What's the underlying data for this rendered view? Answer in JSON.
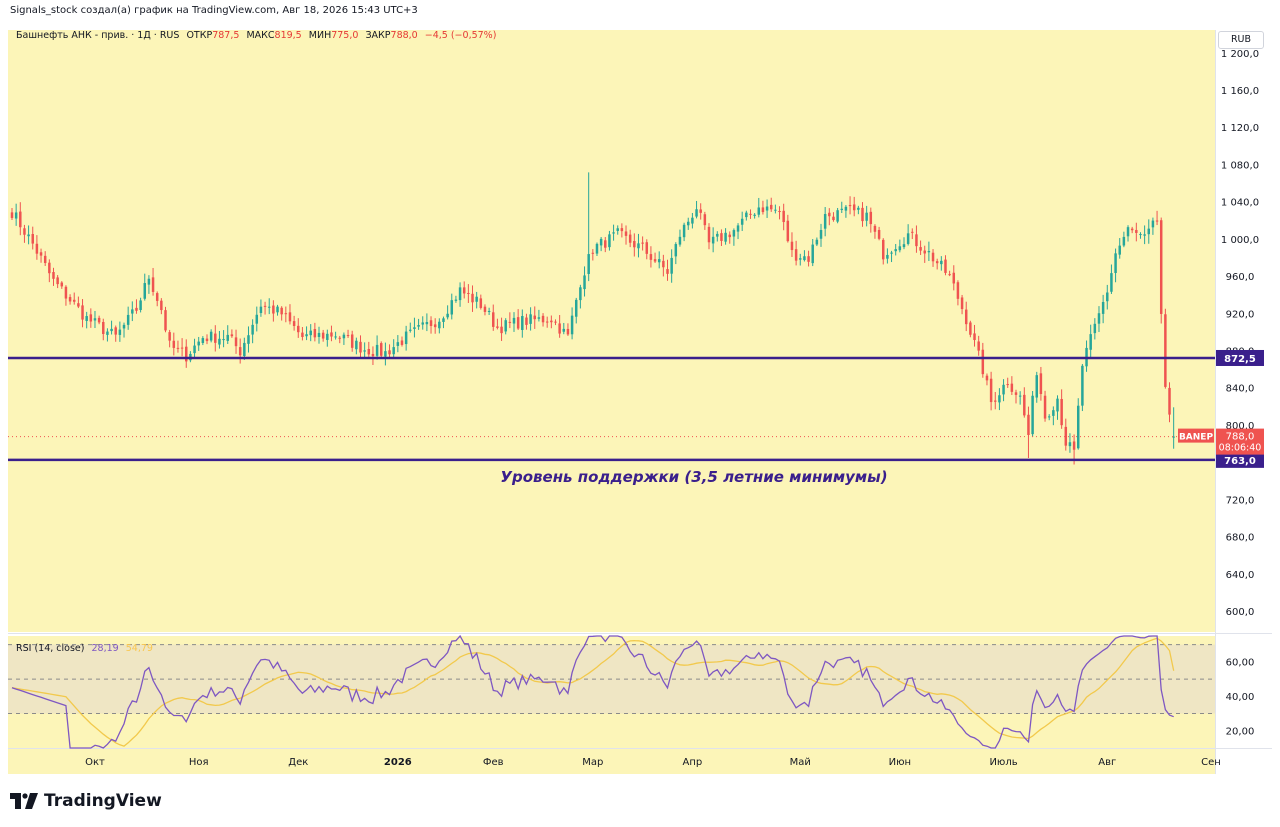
{
  "header": {
    "attribution": "Signals_stock создал(а) график на TradingView.com, Авг 18, 2026 15:43 UTC+3"
  },
  "legend": {
    "symbol_desc": "Башнефть АНК - прив. · 1Д · RUS",
    "open_label": "ОТКР",
    "open_value": "787,5",
    "high_label": "МАКС",
    "high_value": "819,5",
    "low_label": "МИН",
    "low_value": "775,0",
    "close_label": "ЗАКР",
    "close_value": "788,0",
    "change": "−4,5 (−0,57%)"
  },
  "currency": "RUB",
  "rsi_legend": {
    "label": "RSI (14, close)",
    "rsi_value": "28,19",
    "ma_value": "54,79"
  },
  "price_tag": {
    "ticker": "BANEP",
    "price": "788,0",
    "countdown": "08:06:40"
  },
  "annotation": "Уровень поддержки (3,5 летние минимумы)",
  "brand": "TradingView",
  "colors": {
    "plot_bg": "#fcf5b8",
    "up": "#26a69a",
    "down": "#ef5350",
    "level_line": "#3a1f8c",
    "rsi_line": "#7e57c2",
    "rsi_ma": "#f2c94c",
    "rsi_band": "#efe6c4",
    "annotation": "#3a1f8c"
  },
  "chart_data": [
    {
      "type": "candlestick",
      "title": "Башнефть АНК - прив. · 1Д · RUS",
      "ylabel": "RUB",
      "ylim": [
        578,
        1225
      ],
      "y_ticks": [
        "1 200,0",
        "1 160,0",
        "1 120,0",
        "1 080,0",
        "1 040,0",
        "1 000,0",
        "960,0",
        "920,0",
        "880,0",
        "840,0",
        "800,0",
        "760,0",
        "720,0",
        "680,0",
        "640,0",
        "600,0"
      ],
      "y_tick_values": [
        1200,
        1160,
        1120,
        1080,
        1040,
        1000,
        960,
        920,
        880,
        840,
        800,
        760,
        720,
        680,
        640,
        600
      ],
      "x_labels": [
        "Окт",
        "Ноя",
        "Дек",
        "2026",
        "Фев",
        "Мар",
        "Апр",
        "Май",
        "Июн",
        "Июль",
        "Авг",
        "Сен"
      ],
      "x_label_days": [
        20,
        45,
        69,
        93,
        116,
        140,
        164,
        190,
        214,
        239,
        264,
        289
      ],
      "grid": false,
      "levels": [
        {
          "label": "872,5",
          "value": 872.5
        },
        {
          "label": "763,0",
          "value": 763.0
        }
      ],
      "last_price": 788.0,
      "anchors": [
        {
          "day": 0,
          "close": 1030
        },
        {
          "day": 5,
          "close": 995
        },
        {
          "day": 10,
          "close": 955
        },
        {
          "day": 18,
          "close": 915
        },
        {
          "day": 25,
          "close": 895
        },
        {
          "day": 30,
          "close": 925
        },
        {
          "day": 33,
          "close": 960
        },
        {
          "day": 36,
          "close": 925
        },
        {
          "day": 38,
          "close": 885
        },
        {
          "day": 42,
          "close": 875
        },
        {
          "day": 46,
          "close": 895
        },
        {
          "day": 52,
          "close": 895
        },
        {
          "day": 55,
          "close": 880
        },
        {
          "day": 60,
          "close": 930
        },
        {
          "day": 65,
          "close": 920
        },
        {
          "day": 70,
          "close": 895
        },
        {
          "day": 78,
          "close": 898
        },
        {
          "day": 85,
          "close": 882
        },
        {
          "day": 90,
          "close": 878
        },
        {
          "day": 95,
          "close": 895
        },
        {
          "day": 103,
          "close": 915
        },
        {
          "day": 108,
          "close": 945
        },
        {
          "day": 113,
          "close": 930
        },
        {
          "day": 117,
          "close": 905
        },
        {
          "day": 123,
          "close": 912
        },
        {
          "day": 130,
          "close": 915
        },
        {
          "day": 134,
          "close": 895
        },
        {
          "day": 137,
          "close": 955
        },
        {
          "day": 140,
          "close": 990
        },
        {
          "day": 146,
          "close": 1005
        },
        {
          "day": 152,
          "close": 990
        },
        {
          "day": 158,
          "close": 965
        },
        {
          "day": 161,
          "close": 1005
        },
        {
          "day": 165,
          "close": 1035
        },
        {
          "day": 168,
          "close": 995
        },
        {
          "day": 174,
          "close": 1010
        },
        {
          "day": 180,
          "close": 1035
        },
        {
          "day": 185,
          "close": 1030
        },
        {
          "day": 188,
          "close": 985
        },
        {
          "day": 192,
          "close": 980
        },
        {
          "day": 196,
          "close": 1025
        },
        {
          "day": 202,
          "close": 1030
        },
        {
          "day": 206,
          "close": 1025
        },
        {
          "day": 210,
          "close": 985
        },
        {
          "day": 216,
          "close": 1005
        },
        {
          "day": 221,
          "close": 985
        },
        {
          "day": 226,
          "close": 960
        },
        {
          "day": 230,
          "close": 915
        },
        {
          "day": 234,
          "close": 860
        },
        {
          "day": 236,
          "close": 825
        },
        {
          "day": 240,
          "close": 848
        },
        {
          "day": 243,
          "close": 830
        },
        {
          "day": 245,
          "close": 790
        },
        {
          "day": 247,
          "close": 860
        },
        {
          "day": 249,
          "close": 810
        },
        {
          "day": 252,
          "close": 830
        },
        {
          "day": 254,
          "close": 782
        },
        {
          "day": 256,
          "close": 770
        },
        {
          "day": 258,
          "close": 865
        },
        {
          "day": 261,
          "close": 905
        },
        {
          "day": 264,
          "close": 945
        },
        {
          "day": 266,
          "close": 985
        },
        {
          "day": 269,
          "close": 1010
        },
        {
          "day": 273,
          "close": 1000
        },
        {
          "day": 276,
          "close": 1020
        },
        {
          "day": 277,
          "close": 920
        },
        {
          "day": 278,
          "close": 835
        },
        {
          "day": 279,
          "close": 805
        },
        {
          "day": 280,
          "close": 788
        }
      ]
    },
    {
      "type": "line",
      "title": "RSI (14, close)",
      "ylim": [
        10,
        75
      ],
      "y_ticks": [
        "60,00",
        "40,00",
        "20,00"
      ],
      "y_tick_values": [
        60,
        40,
        20
      ],
      "band": [
        30,
        70
      ],
      "midline": 50,
      "series": [
        {
          "name": "RSI",
          "last": 28.19
        },
        {
          "name": "MA",
          "last": 54.79
        }
      ]
    }
  ]
}
